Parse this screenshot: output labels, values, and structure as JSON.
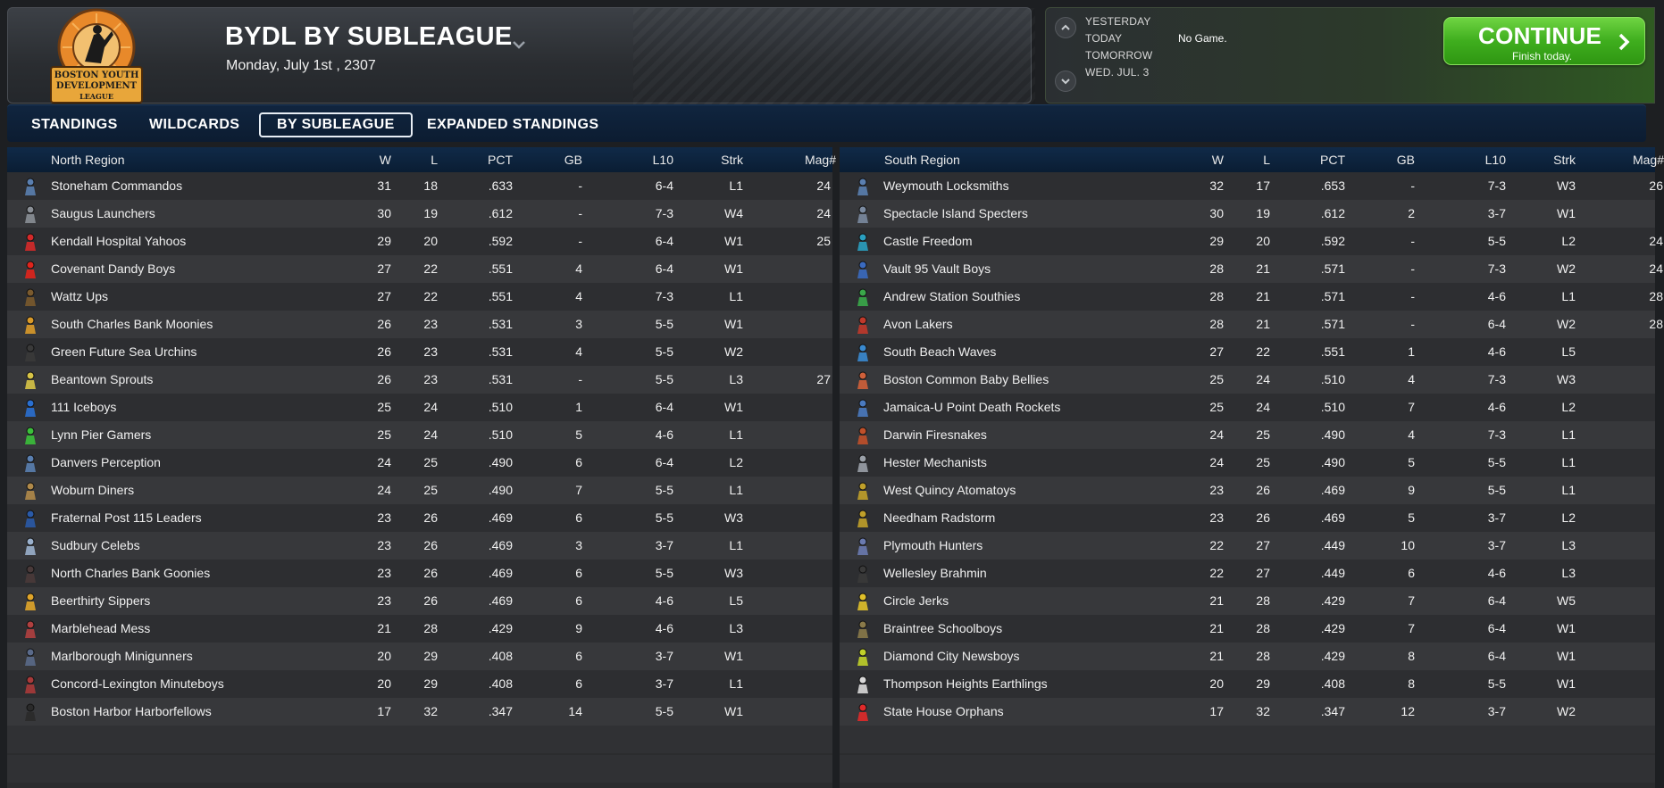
{
  "header": {
    "title": "BYDL BY SUBLEAGUE",
    "date": "Monday, July 1st , 2307",
    "logo_text": [
      "BOSTON YOUTH",
      "DEVELOPMENT",
      "LEAGUE"
    ]
  },
  "schedule": {
    "days": [
      "YESTERDAY",
      "TODAY",
      "TOMORROW",
      "WED. JUL. 3"
    ],
    "today_game": "No Game.",
    "continue_label": "CONTINUE",
    "continue_sub": "Finish today."
  },
  "tabs": [
    "STANDINGS",
    "WILDCARDS",
    "BY SUBLEAGUE",
    "EXPANDED STANDINGS"
  ],
  "active_tab": "BY SUBLEAGUE",
  "columns": [
    "W",
    "L",
    "PCT",
    "GB",
    "L10",
    "Strk",
    "Mag#"
  ],
  "north": {
    "region": "North Region",
    "rows": [
      {
        "team": "Stoneham Commandos",
        "icon": "commando-icon",
        "color": "#5a7fb0",
        "w": "31",
        "l": "18",
        "pct": ".633",
        "gb": "-",
        "l10": "6-4",
        "strk": "L1",
        "mag": "24"
      },
      {
        "team": "Saugus Launchers",
        "icon": "launcher-icon",
        "color": "#8a8f96",
        "w": "30",
        "l": "19",
        "pct": ".612",
        "gb": "-",
        "l10": "7-3",
        "strk": "W4",
        "mag": "24"
      },
      {
        "team": "Kendall Hospital Yahoos",
        "icon": "yahoo-icon",
        "color": "#d42a2a",
        "w": "29",
        "l": "20",
        "pct": ".592",
        "gb": "-",
        "l10": "6-4",
        "strk": "W1",
        "mag": "25"
      },
      {
        "team": "Covenant Dandy Boys",
        "icon": "apple-icon",
        "color": "#e0241c",
        "w": "27",
        "l": "22",
        "pct": ".551",
        "gb": "4",
        "l10": "6-4",
        "strk": "W1",
        "mag": ""
      },
      {
        "team": "Wattz Ups",
        "icon": "ups-icon",
        "color": "#7a5a2e",
        "w": "27",
        "l": "22",
        "pct": ".551",
        "gb": "4",
        "l10": "7-3",
        "strk": "L1",
        "mag": ""
      },
      {
        "team": "South Charles Bank Moonies",
        "icon": "moon-icon",
        "color": "#d99a2a",
        "w": "26",
        "l": "23",
        "pct": ".531",
        "gb": "3",
        "l10": "5-5",
        "strk": "W1",
        "mag": ""
      },
      {
        "team": "Green Future Sea Urchins",
        "icon": "urchin-icon",
        "color": "#3a3a3a",
        "w": "26",
        "l": "23",
        "pct": ".531",
        "gb": "4",
        "l10": "5-5",
        "strk": "W2",
        "mag": ""
      },
      {
        "team": "Beantown Sprouts",
        "icon": "sprout-icon",
        "color": "#d7c447",
        "w": "26",
        "l": "23",
        "pct": ".531",
        "gb": "-",
        "l10": "5-5",
        "strk": "L3",
        "mag": "27"
      },
      {
        "team": "111 Iceboys",
        "icon": "ice-gear-icon",
        "color": "#2a6fd0",
        "w": "25",
        "l": "24",
        "pct": ".510",
        "gb": "1",
        "l10": "6-4",
        "strk": "W1",
        "mag": ""
      },
      {
        "team": "Lynn Pier Gamers",
        "icon": "gamer-icon",
        "color": "#3bbf3b",
        "w": "25",
        "l": "24",
        "pct": ".510",
        "gb": "5",
        "l10": "4-6",
        "strk": "L1",
        "mag": ""
      },
      {
        "team": "Danvers Perception",
        "icon": "perception-icon",
        "color": "#5a7fb0",
        "w": "24",
        "l": "25",
        "pct": ".490",
        "gb": "6",
        "l10": "6-4",
        "strk": "L2",
        "mag": ""
      },
      {
        "team": "Woburn Diners",
        "icon": "diner-icon",
        "color": "#b08a4a",
        "w": "24",
        "l": "25",
        "pct": ".490",
        "gb": "7",
        "l10": "5-5",
        "strk": "L1",
        "mag": ""
      },
      {
        "team": "Fraternal Post 115 Leaders",
        "icon": "leader-icon",
        "color": "#2a5aa8",
        "w": "23",
        "l": "26",
        "pct": ".469",
        "gb": "6",
        "l10": "5-5",
        "strk": "W3",
        "mag": ""
      },
      {
        "team": "Sudbury Celebs",
        "icon": "celeb-icon",
        "color": "#9ab0cc",
        "w": "23",
        "l": "26",
        "pct": ".469",
        "gb": "3",
        "l10": "3-7",
        "strk": "L1",
        "mag": ""
      },
      {
        "team": "North Charles Bank Goonies",
        "icon": "goonie-icon",
        "color": "#4a3a3a",
        "w": "23",
        "l": "26",
        "pct": ".469",
        "gb": "6",
        "l10": "5-5",
        "strk": "W3",
        "mag": ""
      },
      {
        "team": "Beerthirty Sippers",
        "icon": "beer-icon",
        "color": "#e0a52a",
        "w": "23",
        "l": "26",
        "pct": ".469",
        "gb": "6",
        "l10": "4-6",
        "strk": "L5",
        "mag": ""
      },
      {
        "team": "Marblehead Mess",
        "icon": "mess-icon",
        "color": "#b04040",
        "w": "21",
        "l": "28",
        "pct": ".429",
        "gb": "9",
        "l10": "4-6",
        "strk": "L3",
        "mag": ""
      },
      {
        "team": "Marlborough Minigunners",
        "icon": "minigun-icon",
        "color": "#5a6a8a",
        "w": "20",
        "l": "29",
        "pct": ".408",
        "gb": "6",
        "l10": "3-7",
        "strk": "W1",
        "mag": ""
      },
      {
        "team": "Concord-Lexington Minuteboys",
        "icon": "minuteman-icon",
        "color": "#a83a3a",
        "w": "20",
        "l": "29",
        "pct": ".408",
        "gb": "6",
        "l10": "3-7",
        "strk": "L1",
        "mag": ""
      },
      {
        "team": "Boston Harbor Harborfellows",
        "icon": "harbor-icon",
        "color": "#2a2a2a",
        "w": "17",
        "l": "32",
        "pct": ".347",
        "gb": "14",
        "l10": "5-5",
        "strk": "W1",
        "mag": ""
      }
    ]
  },
  "south": {
    "region": "South Region",
    "rows": [
      {
        "team": "Weymouth Locksmiths",
        "icon": "locksmith-icon",
        "color": "#5a7fb0",
        "w": "32",
        "l": "17",
        "pct": ".653",
        "gb": "-",
        "l10": "7-3",
        "strk": "W3",
        "mag": "26"
      },
      {
        "team": "Spectacle Island Specters",
        "icon": "specter-icon",
        "color": "#7a8aa0",
        "w": "30",
        "l": "19",
        "pct": ".612",
        "gb": "2",
        "l10": "3-7",
        "strk": "W1",
        "mag": ""
      },
      {
        "team": "Castle Freedom",
        "icon": "castle-icon",
        "color": "#2a9fc0",
        "w": "29",
        "l": "20",
        "pct": ".592",
        "gb": "-",
        "l10": "5-5",
        "strk": "L2",
        "mag": "24"
      },
      {
        "team": "Vault 95 Vault Boys",
        "icon": "vaultboy-icon",
        "color": "#3a6ac0",
        "w": "28",
        "l": "21",
        "pct": ".571",
        "gb": "-",
        "l10": "7-3",
        "strk": "W2",
        "mag": "24"
      },
      {
        "team": "Andrew Station Southies",
        "icon": "southie-icon",
        "color": "#3aa84a",
        "w": "28",
        "l": "21",
        "pct": ".571",
        "gb": "-",
        "l10": "4-6",
        "strk": "L1",
        "mag": "28"
      },
      {
        "team": "Avon Lakers",
        "icon": "laker-icon",
        "color": "#c0392b",
        "w": "28",
        "l": "21",
        "pct": ".571",
        "gb": "-",
        "l10": "6-4",
        "strk": "W2",
        "mag": "28"
      },
      {
        "team": "South Beach Waves",
        "icon": "wave-icon",
        "color": "#3a8ad0",
        "w": "27",
        "l": "22",
        "pct": ".551",
        "gb": "1",
        "l10": "4-6",
        "strk": "L5",
        "mag": ""
      },
      {
        "team": "Boston Common Baby Bellies",
        "icon": "baby-icon",
        "color": "#d0603a",
        "w": "25",
        "l": "24",
        "pct": ".510",
        "gb": "4",
        "l10": "7-3",
        "strk": "W3",
        "mag": ""
      },
      {
        "team": "Jamaica-U Point Death Rockets",
        "icon": "rocket-icon",
        "color": "#4a7ac0",
        "w": "25",
        "l": "24",
        "pct": ".510",
        "gb": "7",
        "l10": "4-6",
        "strk": "L2",
        "mag": ""
      },
      {
        "team": "Darwin Firesnakes",
        "icon": "firesnake-icon",
        "color": "#c0502a",
        "w": "24",
        "l": "25",
        "pct": ".490",
        "gb": "4",
        "l10": "7-3",
        "strk": "L1",
        "mag": ""
      },
      {
        "team": "Hester Mechanists",
        "icon": "mechanist-icon",
        "color": "#9aa0a8",
        "w": "24",
        "l": "25",
        "pct": ".490",
        "gb": "5",
        "l10": "5-5",
        "strk": "L1",
        "mag": ""
      },
      {
        "team": "West Quincy Atomatoys",
        "icon": "atomatoy-icon",
        "color": "#c0a02a",
        "w": "23",
        "l": "26",
        "pct": ".469",
        "gb": "9",
        "l10": "5-5",
        "strk": "L1",
        "mag": ""
      },
      {
        "team": "Needham Radstorm",
        "icon": "radiation-icon",
        "color": "#c0a02a",
        "w": "23",
        "l": "26",
        "pct": ".469",
        "gb": "5",
        "l10": "3-7",
        "strk": "L2",
        "mag": ""
      },
      {
        "team": "Plymouth Hunters",
        "icon": "hunter-icon",
        "color": "#6a7ab0",
        "w": "22",
        "l": "27",
        "pct": ".449",
        "gb": "10",
        "l10": "3-7",
        "strk": "L3",
        "mag": ""
      },
      {
        "team": "Wellesley Brahmin",
        "icon": "brahmin-icon",
        "color": "#3a3a3a",
        "w": "22",
        "l": "27",
        "pct": ".449",
        "gb": "6",
        "l10": "4-6",
        "strk": "L3",
        "mag": ""
      },
      {
        "team": "Circle Jerks",
        "icon": "circle-icon",
        "color": "#e0c02a",
        "w": "21",
        "l": "28",
        "pct": ".429",
        "gb": "7",
        "l10": "6-4",
        "strk": "W5",
        "mag": ""
      },
      {
        "team": "Braintree Schoolboys",
        "icon": "schoolboy-icon",
        "color": "#8a7a4a",
        "w": "21",
        "l": "28",
        "pct": ".429",
        "gb": "7",
        "l10": "6-4",
        "strk": "W1",
        "mag": ""
      },
      {
        "team": "Diamond City Newsboys",
        "icon": "newsboy-icon",
        "color": "#c0d02a",
        "w": "21",
        "l": "28",
        "pct": ".429",
        "gb": "8",
        "l10": "6-4",
        "strk": "W1",
        "mag": ""
      },
      {
        "team": "Thompson Heights Earthlings",
        "icon": "earthling-icon",
        "color": "#d8d8d8",
        "w": "20",
        "l": "29",
        "pct": ".408",
        "gb": "8",
        "l10": "5-5",
        "strk": "W1",
        "mag": ""
      },
      {
        "team": "State House Orphans",
        "icon": "orphan-icon",
        "color": "#e02a2a",
        "w": "17",
        "l": "32",
        "pct": ".347",
        "gb": "12",
        "l10": "3-7",
        "strk": "W2",
        "mag": ""
      }
    ]
  }
}
